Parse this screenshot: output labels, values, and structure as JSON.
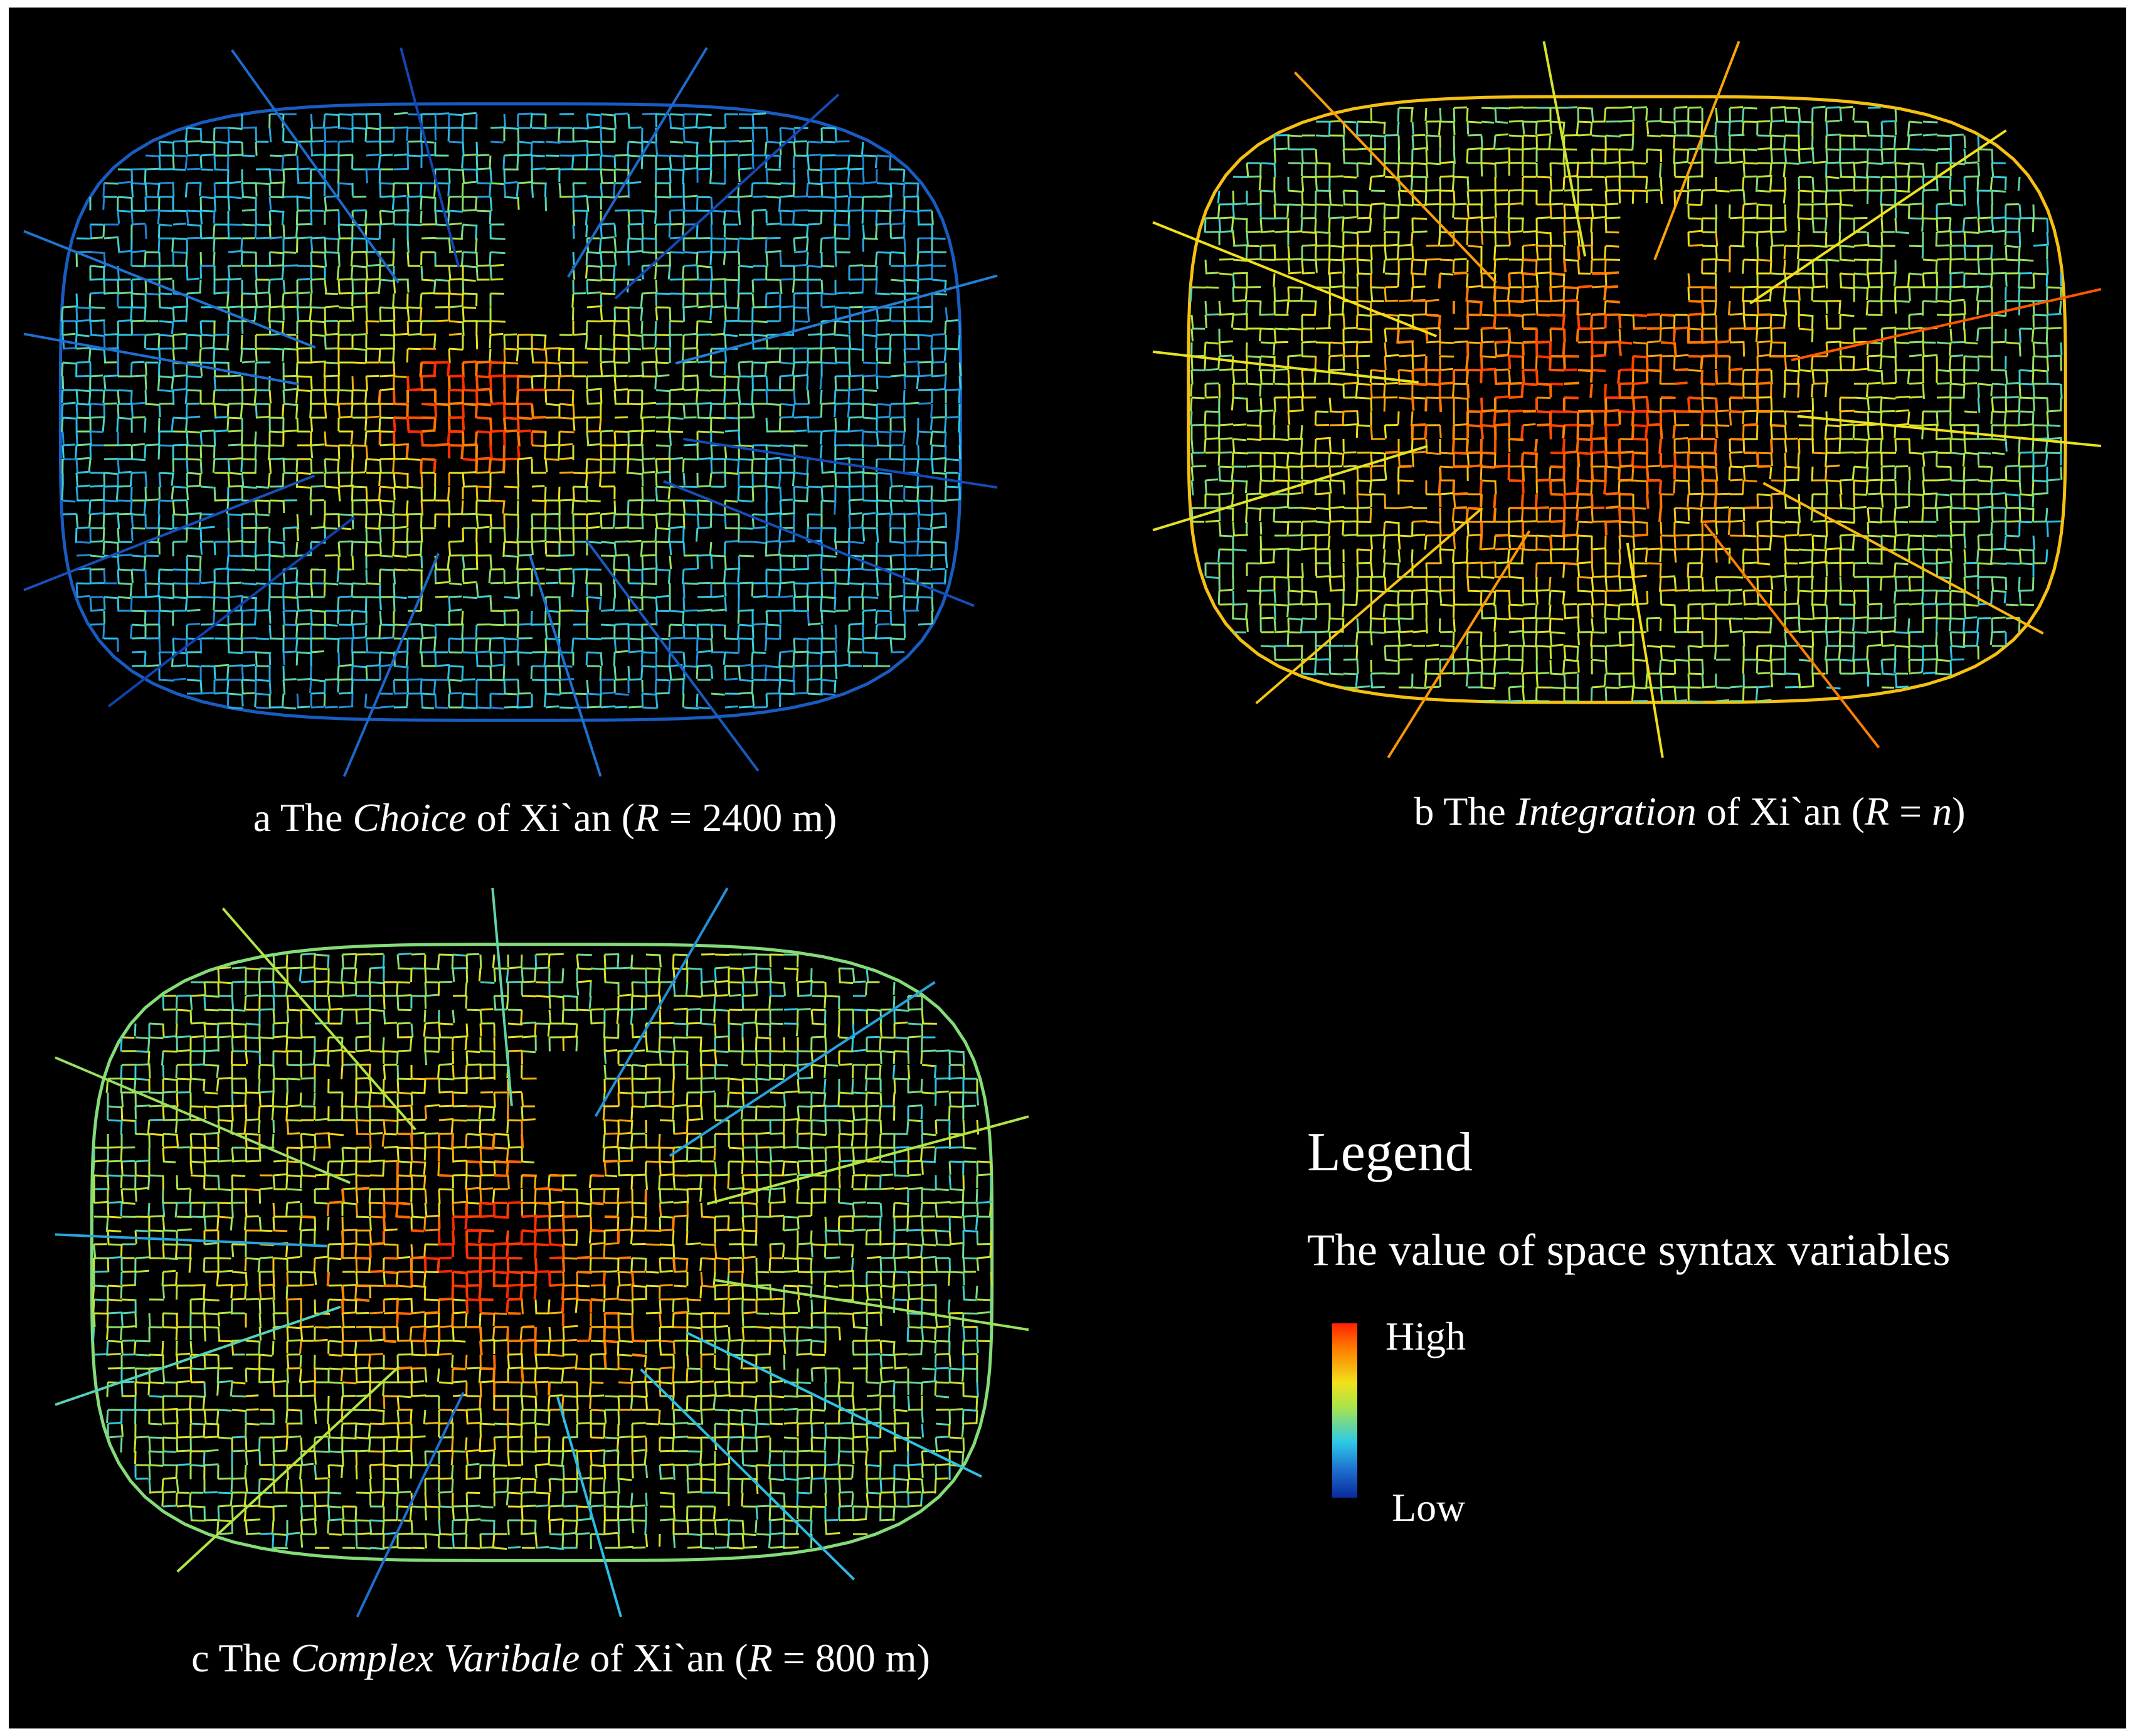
{
  "panels": [
    {
      "id": "a",
      "caption": {
        "letter": "a",
        "pre": "The",
        "term": "Choice",
        "mid": "of  Xi`an (",
        "rvar": "R",
        "eq": " = ",
        "rval": "2400 m",
        "rval_italic": false,
        "close": ")"
      },
      "colormap": "choice",
      "hotspot_level": 1.0
    },
    {
      "id": "b",
      "caption": {
        "letter": "b",
        "pre": "The",
        "term": "Integration",
        "mid": "of  Xi`an (",
        "rvar": "R",
        "eq": " = ",
        "rval": "n",
        "rval_italic": true,
        "close": ")"
      },
      "colormap": "integration",
      "hotspot_level": 0.75
    },
    {
      "id": "c",
      "caption": {
        "letter": "c",
        "pre": "The",
        "term": "Complex Varibale",
        "mid": "of  Xi`an (",
        "rvar": "R",
        "eq": " = ",
        "rval": "800 m",
        "rval_italic": false,
        "close": ")"
      },
      "colormap": "complex",
      "hotspot_level": 1.0
    }
  ],
  "legend": {
    "title": "Legend",
    "subtitle": "The value of space syntax variables",
    "high_label": "High",
    "low_label": "Low",
    "ramp_colors": [
      "#ff2200",
      "#ff7a00",
      "#f2e11a",
      "#a9e44a",
      "#2ec9e6",
      "#1e6fd0",
      "#0a2a9a"
    ]
  },
  "colors": {
    "background": "#000000",
    "text": "#ffffff"
  }
}
